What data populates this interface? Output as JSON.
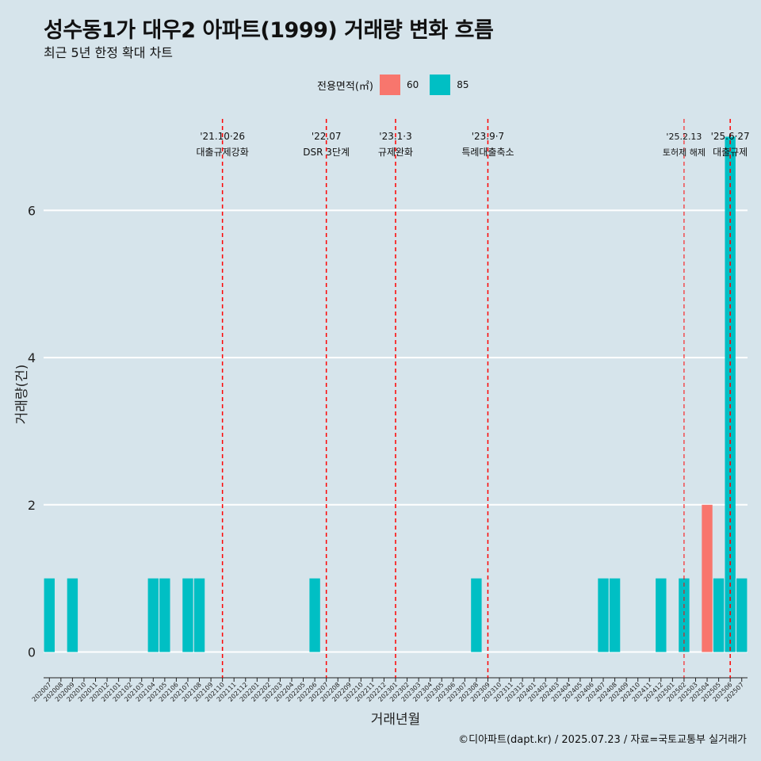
{
  "chart_data": {
    "type": "bar",
    "title": "성수동1가 대우2 아파트(1999) 거래량 변화 흐름",
    "subtitle": "최근 5년 한정 확대 차트",
    "xlabel": "거래년월",
    "ylabel": "거래량(건)",
    "ylim": [
      -0.35,
      7.35
    ],
    "yticks": [
      0,
      2,
      4,
      6
    ],
    "grid": true,
    "legend": {
      "title": "전용면적(㎡)",
      "placement": "top-center",
      "entries": [
        {
          "label": "60",
          "color": "#f8766d"
        },
        {
          "label": "85",
          "color": "#00bfc4"
        }
      ]
    },
    "categories": [
      "202007",
      "202008",
      "202009",
      "202010",
      "202011",
      "202012",
      "202101",
      "202102",
      "202103",
      "202104",
      "202105",
      "202106",
      "202107",
      "202108",
      "202109",
      "202110",
      "202111",
      "202112",
      "202201",
      "202202",
      "202203",
      "202204",
      "202205",
      "202206",
      "202207",
      "202208",
      "202209",
      "202210",
      "202211",
      "202212",
      "202301",
      "202302",
      "202303",
      "202304",
      "202305",
      "202306",
      "202307",
      "202308",
      "202309",
      "202310",
      "202311",
      "202312",
      "202401",
      "202402",
      "202403",
      "202404",
      "202405",
      "202406",
      "202407",
      "202408",
      "202409",
      "202410",
      "202411",
      "202412",
      "202501",
      "202502",
      "202503",
      "202504",
      "202505",
      "202506",
      "202507"
    ],
    "series": [
      {
        "name": "60",
        "color": "#f8766d",
        "values": [
          0,
          0,
          0,
          0,
          0,
          0,
          0,
          0,
          0,
          0,
          0,
          0,
          0,
          0,
          0,
          0,
          0,
          0,
          0,
          0,
          0,
          0,
          0,
          0,
          0,
          0,
          0,
          0,
          0,
          0,
          0,
          0,
          0,
          0,
          0,
          0,
          0,
          0,
          0,
          0,
          0,
          0,
          0,
          0,
          0,
          0,
          0,
          0,
          0,
          0,
          0,
          0,
          0,
          0,
          0,
          0,
          0,
          2,
          0,
          0,
          0
        ]
      },
      {
        "name": "85",
        "color": "#00bfc4",
        "values": [
          1,
          0,
          1,
          0,
          0,
          0,
          0,
          0,
          0,
          1,
          1,
          0,
          1,
          1,
          0,
          0,
          0,
          0,
          0,
          0,
          0,
          0,
          0,
          1,
          0,
          0,
          0,
          0,
          0,
          0,
          0,
          0,
          0,
          0,
          0,
          0,
          0,
          1,
          0,
          0,
          0,
          0,
          0,
          0,
          0,
          0,
          0,
          0,
          1,
          1,
          0,
          0,
          0,
          1,
          0,
          1,
          0,
          0,
          1,
          7,
          1
        ]
      }
    ],
    "annotations": [
      {
        "month": "202110",
        "date": "'21.10·26",
        "label": "대출규제강화"
      },
      {
        "month": "202207",
        "date": "'22.07",
        "label": "DSR 3단계"
      },
      {
        "month": "202301",
        "date": "'23.1·3",
        "label": "규제완화"
      },
      {
        "month": "202309",
        "date": "'23.9·7",
        "label": "특례대출축소"
      },
      {
        "month": "202502",
        "date": "'25.2.13",
        "label": "토허제 해제"
      },
      {
        "month": "202506",
        "date": "'25.6·27",
        "label": "대출규제"
      }
    ]
  },
  "caption": "©디아파트(dapt.kr) / 2025.07.23 / 자료=국토교통부 실거래가"
}
